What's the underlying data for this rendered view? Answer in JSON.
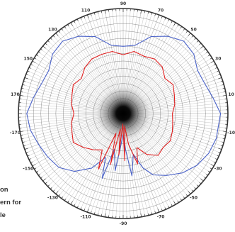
{
  "caption": {
    "lines": [
      "on",
      "ern for",
      "le"
    ]
  },
  "colors": {
    "background": "#ffffff",
    "ring": "#333333",
    "grid": "#555555",
    "tick_text": "#333333",
    "series_blue": "#4a62c8",
    "series_red": "#e02020"
  },
  "chart_data": {
    "type": "polar-line",
    "title": "",
    "angle_unit": "degrees",
    "radial_range": [
      0,
      1
    ],
    "angle_tick_labels": [
      "90",
      "70",
      "50",
      "30",
      "10",
      "-10",
      "-30",
      "-50",
      "-70",
      "-90",
      "-110",
      "-130",
      "-150",
      "-170",
      "170",
      "150",
      "130",
      "110"
    ],
    "radial_tick_labels": [
      "",
      "",
      "",
      ""
    ],
    "grid": true,
    "series": [
      {
        "color": "#4a62c8",
        "points": [
          [
            0,
            0.93
          ],
          [
            10,
            0.87
          ],
          [
            20,
            0.83
          ],
          [
            30,
            0.82
          ],
          [
            40,
            0.88
          ],
          [
            50,
            0.9
          ],
          [
            60,
            0.85
          ],
          [
            70,
            0.78
          ],
          [
            80,
            0.66
          ],
          [
            90,
            0.64
          ],
          [
            100,
            0.66
          ],
          [
            110,
            0.78
          ],
          [
            120,
            0.85
          ],
          [
            130,
            0.9
          ],
          [
            140,
            0.88
          ],
          [
            150,
            0.82
          ],
          [
            160,
            0.83
          ],
          [
            170,
            0.87
          ],
          [
            180,
            0.92
          ],
          [
            190,
            0.9
          ],
          [
            200,
            0.86
          ],
          [
            210,
            0.83
          ],
          [
            220,
            0.8
          ],
          [
            230,
            0.72
          ],
          [
            240,
            0.6
          ],
          [
            248,
            0.45
          ],
          [
            252,
            0.65
          ],
          [
            256,
            0.35
          ],
          [
            262,
            0.55
          ],
          [
            266,
            0.3
          ],
          [
            270,
            0.2
          ],
          [
            274,
            0.35
          ],
          [
            278,
            0.6
          ],
          [
            284,
            0.4
          ],
          [
            290,
            0.55
          ],
          [
            296,
            0.65
          ],
          [
            305,
            0.72
          ],
          [
            315,
            0.8
          ],
          [
            325,
            0.86
          ],
          [
            335,
            0.9
          ],
          [
            345,
            0.92
          ]
        ]
      },
      {
        "color": "#e02020",
        "points": [
          [
            0,
            0.47
          ],
          [
            10,
            0.5
          ],
          [
            20,
            0.52
          ],
          [
            30,
            0.55
          ],
          [
            40,
            0.52
          ],
          [
            50,
            0.58
          ],
          [
            60,
            0.6
          ],
          [
            70,
            0.58
          ],
          [
            80,
            0.6
          ],
          [
            90,
            0.56
          ],
          [
            100,
            0.6
          ],
          [
            110,
            0.6
          ],
          [
            120,
            0.6
          ],
          [
            130,
            0.57
          ],
          [
            140,
            0.52
          ],
          [
            150,
            0.55
          ],
          [
            160,
            0.52
          ],
          [
            170,
            0.5
          ],
          [
            180,
            0.47
          ],
          [
            190,
            0.5
          ],
          [
            200,
            0.52
          ],
          [
            210,
            0.55
          ],
          [
            220,
            0.5
          ],
          [
            230,
            0.45
          ],
          [
            240,
            0.4
          ],
          [
            246,
            0.58
          ],
          [
            250,
            0.2
          ],
          [
            256,
            0.5
          ],
          [
            260,
            0.15
          ],
          [
            264,
            0.4
          ],
          [
            268,
            0.1
          ],
          [
            272,
            0.45
          ],
          [
            276,
            0.12
          ],
          [
            280,
            0.3
          ],
          [
            286,
            0.5
          ],
          [
            292,
            0.35
          ],
          [
            300,
            0.45
          ],
          [
            310,
            0.52
          ],
          [
            320,
            0.5
          ],
          [
            330,
            0.52
          ],
          [
            340,
            0.5
          ],
          [
            350,
            0.48
          ]
        ]
      }
    ]
  }
}
